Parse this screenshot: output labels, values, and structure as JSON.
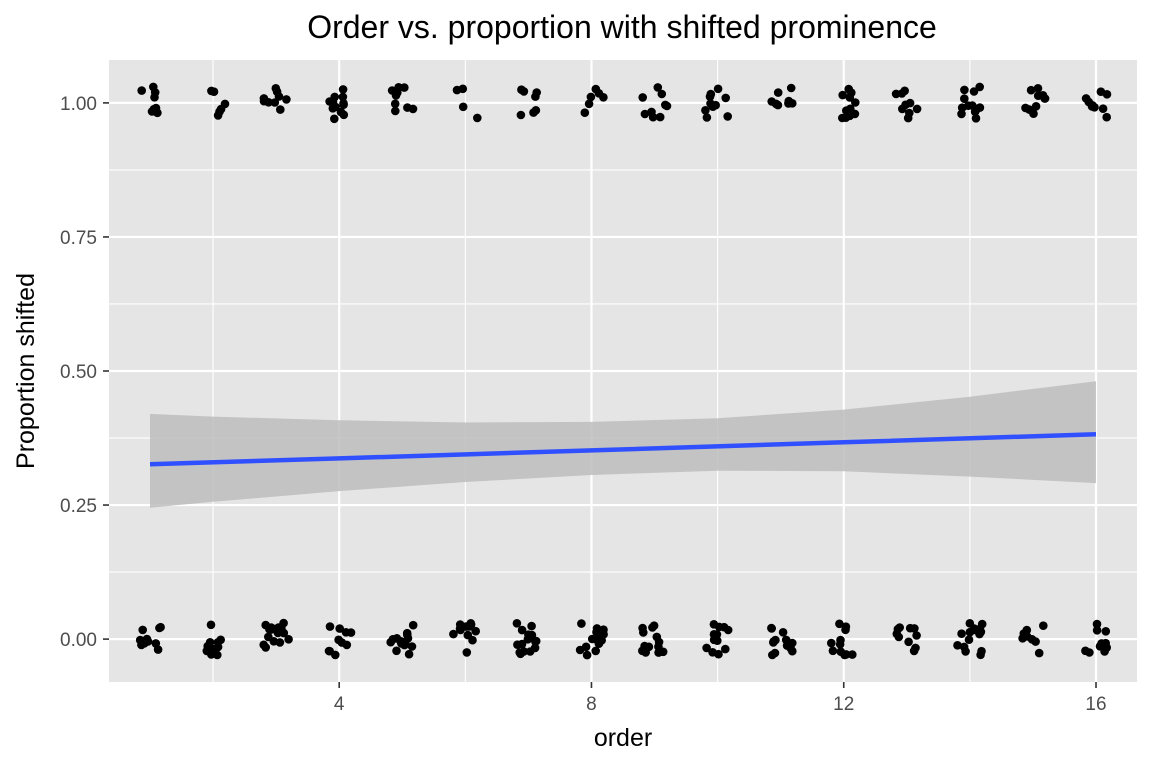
{
  "chart_data": {
    "type": "scatter",
    "title": "Order vs. proportion with shifted prominence",
    "xlabel": "order",
    "ylabel": "Proportion shifted",
    "xlim": [
      0.35,
      16.65
    ],
    "ylim": [
      -0.08,
      1.08
    ],
    "x_ticks": [
      4,
      8,
      12,
      16
    ],
    "y_ticks": [
      0.0,
      0.25,
      0.5,
      0.75,
      1.0
    ],
    "x_tick_labels": [
      "4",
      "8",
      "12",
      "16"
    ],
    "y_tick_labels": [
      "0.00",
      "0.25",
      "0.50",
      "0.75",
      "1.00"
    ],
    "grid": true,
    "panel_background": "#e5e5e5",
    "grid_color": "#ffffff",
    "point_color": "#000000",
    "trend_color": "#3050ff",
    "band_color": "#bdbdbd",
    "points_per_order": {
      "order": [
        1,
        2,
        3,
        4,
        5,
        6,
        7,
        8,
        9,
        10,
        11,
        12,
        13,
        14,
        15,
        16
      ],
      "count_at_1": [
        8,
        6,
        9,
        12,
        9,
        4,
        7,
        6,
        9,
        10,
        8,
        11,
        9,
        12,
        10,
        9
      ],
      "count_at_0": [
        10,
        11,
        17,
        10,
        15,
        12,
        16,
        15,
        14,
        12,
        13,
        11,
        10,
        15,
        8,
        11
      ]
    },
    "jitter": {
      "x": 0.2,
      "y": 0.03
    },
    "trend": {
      "name": "linear fit",
      "x": [
        1,
        4,
        8,
        12,
        16
      ],
      "y": [
        0.326,
        0.337,
        0.352,
        0.367,
        0.382
      ]
    },
    "confidence_band": {
      "x": [
        1,
        2,
        4,
        6,
        8,
        10,
        12,
        14,
        16
      ],
      "upper": [
        0.42,
        0.415,
        0.408,
        0.404,
        0.405,
        0.412,
        0.428,
        0.452,
        0.481
      ],
      "lower": [
        0.245,
        0.256,
        0.276,
        0.293,
        0.306,
        0.314,
        0.313,
        0.303,
        0.291
      ]
    }
  }
}
